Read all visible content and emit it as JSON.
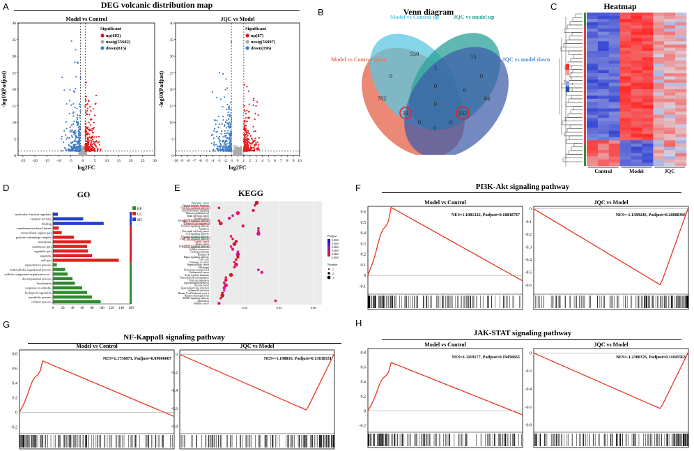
{
  "panels": {
    "A": "A",
    "B": "B",
    "C": "C",
    "D": "D",
    "E": "E",
    "F": "F",
    "G": "G",
    "H": "H"
  },
  "A": {
    "title": "DEG volcanic distribution map",
    "legend_title": "Significant",
    "xlabel": "log2FC",
    "ylabel": "-log10(Padjust)",
    "left": {
      "subtitle": "Model vs Control",
      "legend": [
        "up(683)",
        "nosig(55682)",
        "down(815)"
      ],
      "xticks": [
        "-25",
        "-20",
        "-15",
        "-10",
        "-5",
        "0",
        "5",
        "10",
        "15",
        "20",
        "25",
        "30"
      ],
      "yticks": [
        "0",
        "5",
        "10",
        "15",
        "20",
        "25",
        "30",
        "35",
        "40"
      ]
    },
    "right": {
      "subtitle": "JQC vs Model",
      "legend": [
        "up(87)",
        "nosig(56897)",
        "down(196)"
      ],
      "xticks": [
        "-10",
        "-9",
        "-8",
        "-7",
        "-6",
        "-5",
        "-4",
        "-3",
        "-2",
        "-1",
        "0",
        "1",
        "2",
        "3",
        "4",
        "5",
        "6",
        "7",
        "8",
        "9",
        "10"
      ],
      "yticks": [
        "0",
        "5",
        "10",
        "15",
        "20",
        "25",
        "30",
        "35",
        "40"
      ]
    }
  },
  "B": {
    "title": "Venn diagram",
    "sets": [
      "Model vs Control down",
      "Model vs Control up",
      "JQC vs model up",
      "JQC vs model down"
    ],
    "counts": [
      "550",
      "53",
      "782",
      "0",
      "1",
      "0",
      "64",
      "0",
      "0",
      "33",
      "0",
      "132",
      "0",
      "0",
      "0"
    ]
  },
  "C": {
    "title": "Heatmap",
    "groups": [
      "Control",
      "Model",
      "JQC"
    ],
    "scale": [
      "2",
      "1",
      "0",
      "-1",
      "-2"
    ]
  },
  "D": {
    "title": "GO",
    "legend": [
      "BP",
      "CC",
      "MF"
    ],
    "terms": [
      "molecular function regulator",
      "catalytic activity",
      "binding",
      "membrane-enclosed lumen",
      "extracellular region part",
      "protein-containing complex",
      "membrane",
      "membrane part",
      "organelle part",
      "organelle",
      "cell part",
      "reproductive process",
      "multicellular organismal process",
      "cellular component organization or...",
      "developmental process",
      "localization",
      "response to stimulus",
      "biological regulation",
      "metabolic process",
      "cellular process"
    ],
    "xticks": [
      "0",
      "20",
      "40",
      "60",
      "80",
      "100",
      "120",
      "140",
      "160"
    ]
  },
  "E": {
    "title": "KEGG",
    "terms": [
      "Pancreatic cancer",
      "Chronic myeloid leukemia",
      "TGF-beta signaling pathway",
      "Thyroid hormone signaling",
      "Human papillomavirus",
      "Small cell lung cancer",
      "Prostate cancer",
      "NF-kappa B signaling pathway",
      "Chemical carcinogenesis",
      "Prolactin signaling pathway",
      "Apoptosis",
      "Non-small cell lung cancer",
      "Cell signaling pathway",
      "Estrogen signaling pathway",
      "PI3K-Akt signaling pathway",
      "Gastric cancer",
      "Breast cancer",
      "JAK-STAT signaling pathway",
      "Cellular senescence",
      "Cushing syndrome",
      "Hepatitis B",
      "Hippo signaling pathway",
      "Cell cycle",
      "Pathways in cancer",
      "Hepatocellular cancer",
      "Melanoma",
      "Protein processing in ER",
      "Endometrial cancer",
      "Acute myeloid leukemia",
      "Transcriptional misregulation",
      "Viral carcinogenesis",
      "Lipid and atherosclerosis",
      "Thyroid cancer",
      "Epstein-Barr virus infection",
      "Salmonella infection",
      "Human T-cell leukemia virus 1",
      "Human cytomegalovirus",
      "MAPK signaling pathway",
      "Amoebiasis",
      "Bladder cancer"
    ],
    "xticks": [
      "0.02",
      "0.04",
      "0.06"
    ],
    "legend_padj": "Padjust",
    "padj_ticks": [
      "0.0000",
      "0.0100",
      "0.0200",
      "0.0300",
      "0.0400",
      "0.0500"
    ],
    "legend_num": "Number",
    "num_ticks": [
      "1",
      "2",
      "3"
    ]
  },
  "F": {
    "title": "PI3K-Akt signaling pathway",
    "left": {
      "subtitle": "Model vs Control",
      "stat": "NES=1.1081322, Padjust=0.18838787",
      "yticks": [
        "0.6",
        "0.5",
        "0.4",
        "0.3",
        "0.2",
        "0.1",
        "0",
        "-0.1"
      ]
    },
    "right": {
      "subtitle": "JQC vs Model",
      "stat": "NES=-1.1389246, Padjust=0.20888396",
      "yticks": [
        "0",
        "-0.1",
        "-0.2",
        "-0.3",
        "-0.4",
        "-0.5",
        "-0.6"
      ]
    }
  },
  "G": {
    "title": "NF-KappaB signaling pathway",
    "left": {
      "subtitle": "Model vs Control",
      "stat": "NES=1.1736871, Padjust=0.09606667",
      "yticks": [
        "0.8",
        "0.6",
        "0.4",
        "0.2",
        "0",
        "-0.2"
      ]
    },
    "right": {
      "subtitle": "JQC vs Model",
      "stat": "NES=-1.198816, Padjust=0.13638331",
      "yticks": [
        "0",
        "-0.2",
        "-0.4",
        "-0.6",
        "-0.8"
      ]
    }
  },
  "H": {
    "title": "JAK-STAT signaling pathway",
    "left": {
      "subtitle": "Model vs Control",
      "stat": "NES=1.1119177, Padjust=0.19450665",
      "yticks": [
        "0.8",
        "0.6",
        "0.4",
        "0.2",
        "0",
        "-0.2"
      ]
    },
    "right": {
      "subtitle": "JQC vs Model",
      "stat": "NES=-1.2300376, Padjust=0.11045563",
      "yticks": [
        "0",
        "-0.2",
        "-0.4",
        "-0.6",
        "-0.8"
      ]
    }
  }
}
